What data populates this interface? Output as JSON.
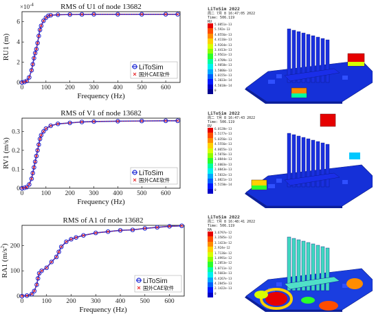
{
  "chart_data": [
    {
      "type": "line",
      "title": "RMS of U1 of node 13682",
      "xlabel": "Frequency (Hz)",
      "ylabel": "RU1 (m)",
      "exponent_label": "×10",
      "exponent_power": "-4",
      "xlim": [
        0,
        660
      ],
      "ylim": [
        0,
        7
      ],
      "xticks": [
        "0",
        "100",
        "200",
        "300",
        "400",
        "500",
        "600"
      ],
      "yticks": [
        "0",
        "2",
        "4",
        "6"
      ],
      "x": [
        0,
        10,
        20,
        30,
        40,
        45,
        50,
        55,
        60,
        65,
        70,
        75,
        80,
        90,
        100,
        110,
        120,
        150,
        200,
        250,
        300,
        400,
        500,
        600,
        650
      ],
      "series": [
        {
          "name": "LiToSim",
          "y": [
            0,
            0.05,
            0.15,
            0.5,
            1.2,
            1.8,
            2.4,
            2.9,
            3.3,
            3.9,
            4.6,
            5.2,
            5.6,
            6.1,
            6.4,
            6.6,
            6.65,
            6.7,
            6.72,
            6.73,
            6.74,
            6.74,
            6.74,
            6.74,
            6.74
          ]
        },
        {
          "name": "国外CAE软件",
          "y": [
            0,
            0.05,
            0.15,
            0.5,
            1.2,
            1.8,
            2.4,
            2.9,
            3.3,
            3.9,
            4.6,
            5.2,
            5.6,
            6.1,
            6.4,
            6.6,
            6.65,
            6.7,
            6.72,
            6.73,
            6.74,
            6.74,
            6.74,
            6.74,
            6.74
          ]
        }
      ],
      "legend_position": "bottom-right"
    },
    {
      "type": "line",
      "title": "RMS of V1 of node 13682",
      "xlabel": "Frequency (Hz)",
      "ylabel": "RV1 (m/s)",
      "xlim": [
        0,
        660
      ],
      "ylim": [
        0,
        0.37
      ],
      "xticks": [
        "0",
        "100",
        "200",
        "300",
        "400",
        "500",
        "600"
      ],
      "yticks": [
        "0",
        "0.1",
        "0.2",
        "0.3"
      ],
      "x": [
        0,
        10,
        20,
        30,
        40,
        45,
        50,
        55,
        60,
        65,
        70,
        75,
        80,
        90,
        100,
        120,
        150,
        200,
        250,
        300,
        400,
        500,
        600,
        650
      ],
      "series": [
        {
          "name": "LiToSim",
          "y": [
            0,
            0.002,
            0.006,
            0.02,
            0.05,
            0.08,
            0.11,
            0.14,
            0.17,
            0.2,
            0.23,
            0.26,
            0.28,
            0.3,
            0.315,
            0.33,
            0.34,
            0.345,
            0.35,
            0.352,
            0.354,
            0.355,
            0.356,
            0.356
          ]
        },
        {
          "name": "国外CAE软件",
          "y": [
            0,
            0.002,
            0.006,
            0.02,
            0.05,
            0.08,
            0.11,
            0.14,
            0.17,
            0.2,
            0.23,
            0.26,
            0.28,
            0.3,
            0.315,
            0.33,
            0.34,
            0.345,
            0.35,
            0.352,
            0.354,
            0.355,
            0.356,
            0.356
          ]
        }
      ],
      "legend_position": "bottom-right"
    },
    {
      "type": "line",
      "title": "RMS of A1 of node 13682",
      "xlabel": "Frequency (Hz)",
      "ylabel": "RA1 (m/s",
      "ylabel_sup": "2",
      "ylabel_end": ")",
      "xlim": [
        0,
        660
      ],
      "ylim": [
        0,
        280
      ],
      "xticks": [
        "0",
        "100",
        "200",
        "300",
        "400",
        "500",
        "600"
      ],
      "yticks": [
        "0",
        "100",
        "200"
      ],
      "x": [
        0,
        20,
        40,
        50,
        60,
        65,
        70,
        80,
        100,
        120,
        140,
        150,
        160,
        180,
        200,
        220,
        250,
        300,
        350,
        400,
        450,
        500,
        550,
        600,
        650
      ],
      "series": [
        {
          "name": "LiToSim",
          "y": [
            0,
            2,
            8,
            20,
            45,
            70,
            90,
            100,
            112,
            135,
            155,
            175,
            195,
            215,
            225,
            232,
            240,
            250,
            255,
            260,
            262,
            268,
            272,
            276,
            278
          ]
        },
        {
          "name": "国外CAE软件",
          "y": [
            0,
            2,
            8,
            20,
            45,
            70,
            90,
            100,
            112,
            135,
            155,
            175,
            195,
            215,
            225,
            232,
            240,
            250,
            255,
            260,
            262,
            268,
            272,
            276,
            278
          ]
        }
      ],
      "legend_position": "bottom-right"
    }
  ],
  "fem_panels": [
    {
      "app": "LiToSim 2022",
      "date": "周二 7月 8 16:47:05 2022",
      "time": "Time: 506.119",
      "field": "RU",
      "levels": [
        "5.0851e-13",
        "5.592e-13",
        "4.8556e-13",
        "4.4116e-13",
        "3.9264e-13",
        "3.4413e-13",
        "2.9561e-13",
        "2.4709e-13",
        "1.9858e-13",
        "1.5006e-13",
        "1.0155e-13",
        "5.3033e-14",
        "4.5018e-14",
        "0"
      ]
    },
    {
      "app": "LiToSim 2022",
      "date": "周二 7月 8 16:47:43 2022",
      "time": "Time: 506.119",
      "field": "RV",
      "levels": [
        "6.0128e-13",
        "5.5177e-13",
        "5.0356e-13",
        "4.5556e-13",
        "4.0655e-13",
        "3.5876e-13",
        "3.0844e-13",
        "2.6003e-13",
        "2.0843e-13",
        "1.5832e-13",
        "1.0821e-13",
        "5.5150e-14",
        "0"
      ]
    },
    {
      "app": "LiToSim 2022",
      "date": "周二 7月 8 16:48:41 2022",
      "time": "Time: 506.119",
      "field": "RA",
      "levels": [
        "3.6797e-12",
        "3.3585e-12",
        "3.1423e-12",
        "2.924e-12",
        "1.7136e-12",
        "1.4991e-12",
        "1.2853e-12",
        "1.0711e-12",
        "8.5683e-13",
        "6.4267e-13",
        "4.2845e-13",
        "2.1422e-13",
        "0"
      ]
    }
  ],
  "colors": {
    "litosim": "#1f2bd6",
    "foreign_cae": "#e8272a",
    "scale": [
      "#e60000",
      "#ff4d00",
      "#ff8c00",
      "#ffd000",
      "#d8ff00",
      "#8cff00",
      "#2bff2b",
      "#00ffa0",
      "#00f0f0",
      "#00a8ff",
      "#0060ff",
      "#0018ff",
      "#0000c8",
      "#000090"
    ]
  }
}
